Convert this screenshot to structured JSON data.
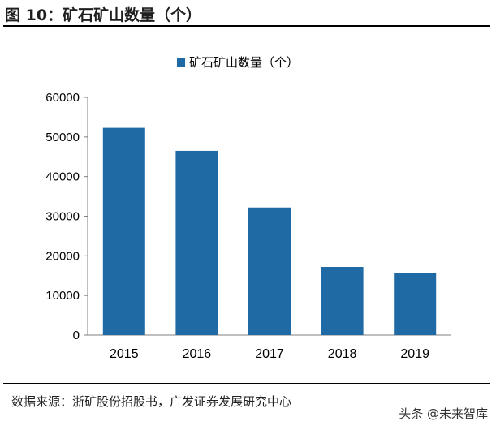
{
  "figure": {
    "title": "图 10：矿石矿山数量（个）"
  },
  "source": "数据来源：浙矿股份招股书，广发证券发展研究中心",
  "watermark": "头条 @未来智库",
  "chart_data": {
    "type": "bar",
    "legend": {
      "entries": [
        "矿石矿山数量（个）"
      ],
      "placement": "top-center"
    },
    "categories": [
      "2015",
      "2016",
      "2017",
      "2018",
      "2019"
    ],
    "series": [
      {
        "name": "矿石矿山数量（个）",
        "values": [
          52300,
          46500,
          32200,
          17200,
          15700
        ],
        "color": "#1f6aa5"
      }
    ],
    "ylim": [
      0,
      60000
    ],
    "yticks": [
      0,
      10000,
      20000,
      30000,
      40000,
      50000,
      60000
    ],
    "grid": false,
    "xlabel": "",
    "ylabel": ""
  }
}
